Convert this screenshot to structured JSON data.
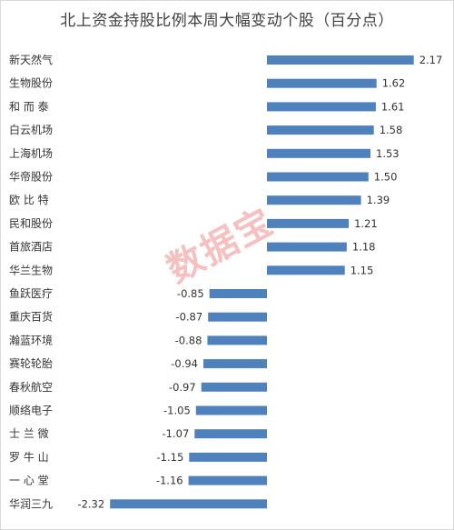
{
  "chart_data": {
    "type": "bar",
    "orientation": "horizontal",
    "title": "北上资金持股比例本周大幅变动个股（百分点）",
    "categories": [
      "新天然气",
      "生物股份",
      "和而泰",
      "白云机场",
      "上海机场",
      "华帝股份",
      "欧比特",
      "民和股份",
      "首旅酒店",
      "华兰生物",
      "鱼跃医疗",
      "重庆百货",
      "瀚蓝环境",
      "赛轮轮胎",
      "春秋航空",
      "顺络电子",
      "士兰微",
      "罗牛山",
      "一心堂",
      "华润三九"
    ],
    "display_categories": [
      "新天然气",
      "生物股份",
      "和 而 泰",
      "白云机场",
      "上海机场",
      "华帝股份",
      "欧 比 特",
      "民和股份",
      "首旅酒店",
      "华兰生物",
      "鱼跃医疗",
      "重庆百货",
      "瀚蓝环境",
      "赛轮轮胎",
      "春秋航空",
      "顺络电子",
      "士 兰 微",
      "罗 牛 山",
      "一 心 堂",
      "华润三九"
    ],
    "values": [
      2.17,
      1.62,
      1.61,
      1.58,
      1.53,
      1.5,
      1.39,
      1.21,
      1.18,
      1.15,
      -0.85,
      -0.87,
      -0.88,
      -0.94,
      -0.97,
      -1.05,
      -1.07,
      -1.15,
      -1.16,
      -2.32
    ],
    "value_labels": [
      "2.17",
      "1.62",
      "1.61",
      "1.58",
      "1.53",
      "1.50",
      "1.39",
      "1.21",
      "1.18",
      "1.15",
      "-0.85",
      "-0.87",
      "-0.88",
      "-0.94",
      "-0.97",
      "-1.05",
      "-1.07",
      "-1.15",
      "-1.16",
      "-2.32"
    ],
    "xlim": [
      -2.32,
      2.17
    ],
    "grid": false,
    "legend": "none",
    "bar_color": "#4f81bd"
  },
  "watermark": "数据宝"
}
